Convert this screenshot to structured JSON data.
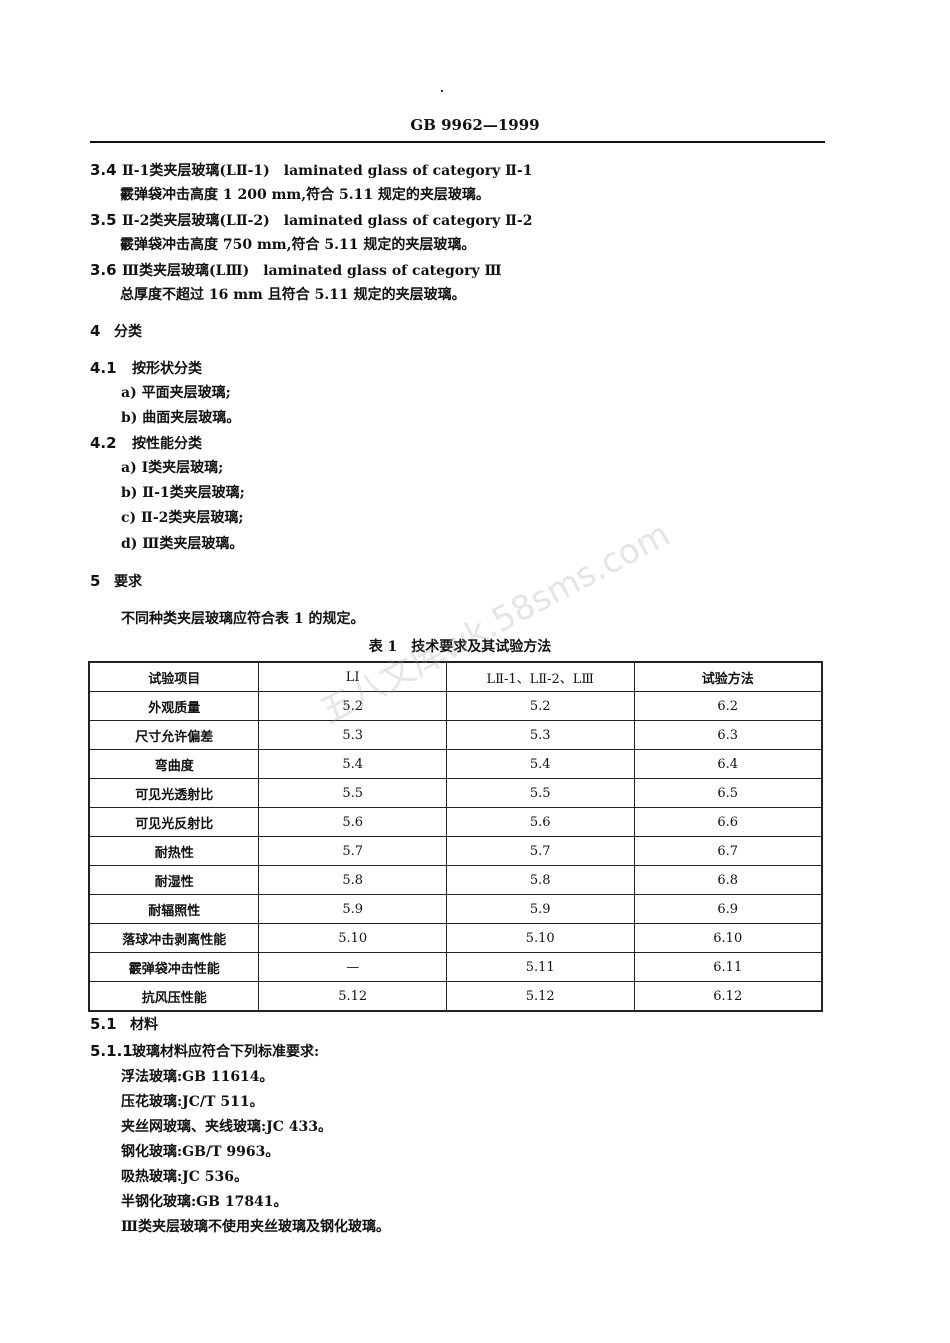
{
  "header": "GB 9962—1999",
  "defs": [
    {
      "num": "3.4",
      "text": "Ⅱ-1类夹层玻璃(LⅡ-1)　laminated glass of category Ⅱ-1",
      "body": "霰弹袋冲击高度 1 200 mm,符合 5.11 规定的夹层玻璃。"
    },
    {
      "num": "3.5",
      "text": "Ⅱ-2类夹层玻璃(LⅡ-2)　laminated glass of category Ⅱ-2",
      "body": "霰弹袋冲击高度 750 mm,符合 5.11 规定的夹层玻璃。"
    },
    {
      "num": "3.6",
      "text": "Ⅲ类夹层玻璃(LⅢ)　laminated glass of category Ⅲ",
      "body": "总厚度不超过 16 mm 且符合 5.11 规定的夹层玻璃。"
    }
  ],
  "s4": {
    "num": "4",
    "title": "分类",
    "s41": {
      "num": "4.1",
      "title": "按形状分类",
      "items": [
        "a) 平面夹层玻璃;",
        "b) 曲面夹层玻璃。"
      ]
    },
    "s42": {
      "num": "4.2",
      "title": "按性能分类",
      "items": [
        "a) Ⅰ类夹层玻璃;",
        "b) Ⅱ-1类夹层玻璃;",
        "c) Ⅱ-2类夹层玻璃;",
        "d) Ⅲ类夹层玻璃。"
      ]
    }
  },
  "s5": {
    "num": "5",
    "title": "要求",
    "intro": "不同种类夹层玻璃应符合表 1 的规定。"
  },
  "table": {
    "caption": "表 1　技术要求及其试验方法",
    "headers": [
      "试验项目",
      "LⅠ",
      "LⅡ-1、LⅡ-2、LⅢ",
      "试验方法"
    ],
    "rows": [
      [
        "外观质量",
        "5.2",
        "5.2",
        "6.2"
      ],
      [
        "尺寸允许偏差",
        "5.3",
        "5.3",
        "6.3"
      ],
      [
        "弯曲度",
        "5.4",
        "5.4",
        "6.4"
      ],
      [
        "可见光透射比",
        "5.5",
        "5.5",
        "6.5"
      ],
      [
        "可见光反射比",
        "5.6",
        "5.6",
        "6.6"
      ],
      [
        "耐热性",
        "5.7",
        "5.7",
        "6.7"
      ],
      [
        "耐湿性",
        "5.8",
        "5.8",
        "6.8"
      ],
      [
        "耐辐照性",
        "5.9",
        "5.9",
        "6.9"
      ],
      [
        "落球冲击剥离性能",
        "5.10",
        "5.10",
        "6.10"
      ],
      [
        "霰弹袋冲击性能",
        "—",
        "5.11",
        "6.11"
      ],
      [
        "抗风压性能",
        "5.12",
        "5.12",
        "6.12"
      ]
    ]
  },
  "s51": {
    "num": "5.1",
    "title": "材料"
  },
  "s511": {
    "num": "5.1.1",
    "title": "玻璃材料应符合下列标准要求:",
    "items": [
      "浮法玻璃:GB 11614。",
      "压花玻璃:JC/T 511。",
      "夹丝网玻璃、夹线玻璃:JC 433。",
      "钢化玻璃:GB/T 9963。",
      "吸热玻璃:JC 536。",
      "半钢化玻璃:GB 17841。",
      "Ⅲ类夹层玻璃不使用夹丝玻璃及钢化玻璃。"
    ]
  },
  "watermark": "五八文库wk.58sms.com"
}
